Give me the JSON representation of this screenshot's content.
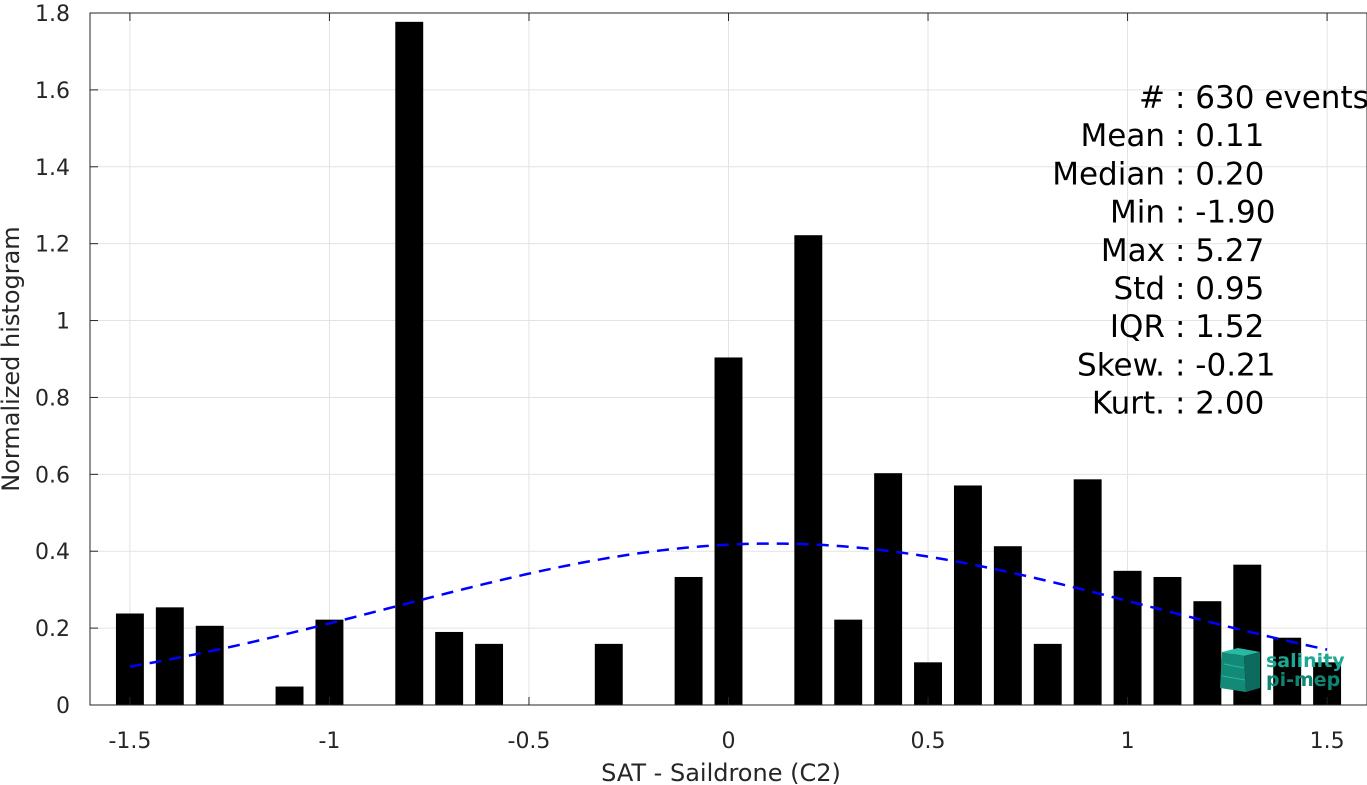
{
  "chart_data": {
    "type": "bar",
    "xlabel": "SAT - Saildrone (C2)",
    "ylabel": "Normalized histogram",
    "xlim": [
      -1.6,
      1.6
    ],
    "ylim": [
      0,
      1.8
    ],
    "xticks": [
      -1.5,
      -1,
      -0.5,
      0,
      0.5,
      1,
      1.5
    ],
    "xtick_labels": [
      "-1.5",
      "-1",
      "-0.5",
      "0",
      "0.5",
      "1",
      "1.5"
    ],
    "yticks": [
      0,
      0.2,
      0.4,
      0.6,
      0.8,
      1,
      1.2,
      1.4,
      1.6,
      1.8
    ],
    "ytick_labels": [
      "0",
      "0.2",
      "0.4",
      "0.6",
      "0.8",
      "1",
      "1.2",
      "1.4",
      "1.6",
      "1.8"
    ],
    "grid": true,
    "bar_color": "#000000",
    "bar_width": 0.07,
    "bars": [
      {
        "x": -1.5,
        "y": 0.238
      },
      {
        "x": -1.4,
        "y": 0.254
      },
      {
        "x": -1.3,
        "y": 0.206
      },
      {
        "x": -1.1,
        "y": 0.048
      },
      {
        "x": -1.0,
        "y": 0.222
      },
      {
        "x": -0.8,
        "y": 1.777
      },
      {
        "x": -0.7,
        "y": 0.19
      },
      {
        "x": -0.6,
        "y": 0.159
      },
      {
        "x": -0.3,
        "y": 0.159
      },
      {
        "x": -0.1,
        "y": 0.333
      },
      {
        "x": 0.0,
        "y": 0.904
      },
      {
        "x": 0.2,
        "y": 1.222
      },
      {
        "x": 0.3,
        "y": 0.222
      },
      {
        "x": 0.4,
        "y": 0.603
      },
      {
        "x": 0.5,
        "y": 0.111
      },
      {
        "x": 0.6,
        "y": 0.571
      },
      {
        "x": 0.7,
        "y": 0.413
      },
      {
        "x": 0.8,
        "y": 0.159
      },
      {
        "x": 0.9,
        "y": 0.587
      },
      {
        "x": 1.0,
        "y": 0.349
      },
      {
        "x": 1.1,
        "y": 0.333
      },
      {
        "x": 1.2,
        "y": 0.27
      },
      {
        "x": 1.3,
        "y": 0.365
      },
      {
        "x": 1.4,
        "y": 0.175
      },
      {
        "x": 1.5,
        "y": 0.111
      }
    ],
    "fit": {
      "type": "gaussian",
      "mean": 0.11,
      "std": 0.95,
      "x_range": [
        -1.5,
        1.5
      ],
      "color": "#0000ff",
      "style": "dashed"
    },
    "stats": [
      {
        "label": "#  ",
        "value": ": 630 events"
      },
      {
        "label": "Mean",
        "value": ": 0.11"
      },
      {
        "label": "Median",
        "value": ": 0.20"
      },
      {
        "label": "Min",
        "value": ": -1.90"
      },
      {
        "label": "Max",
        "value": ": 5.27"
      },
      {
        "label": "Std",
        "value": ": 0.95"
      },
      {
        "label": "IQR",
        "value": ": 1.52"
      },
      {
        "label": "Skew.",
        "value": ": -0.21"
      },
      {
        "label": "Kurt.",
        "value": ": 2.00"
      }
    ]
  },
  "logo": {
    "line1": "salinity",
    "line2": "pi-mep",
    "color": "#1aa894"
  }
}
